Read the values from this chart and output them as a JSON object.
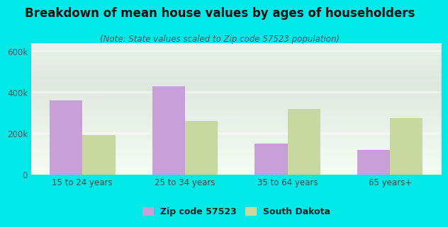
{
  "title": "Breakdown of mean house values by ages of householders",
  "subtitle": "(Note: State values scaled to Zip code 57523 population)",
  "categories": [
    "15 to 24 years",
    "25 to 34 years",
    "35 to 64 years",
    "65 years+"
  ],
  "zip_values": [
    360000,
    430000,
    150000,
    120000
  ],
  "sd_values": [
    190000,
    260000,
    320000,
    275000
  ],
  "zip_color": "#c8a0d8",
  "sd_color": "#c8d8a0",
  "background_outer": "#00e8e8",
  "ylim": [
    0,
    640000
  ],
  "yticks": [
    0,
    200000,
    400000,
    600000
  ],
  "ytick_labels": [
    "0",
    "200k",
    "400k",
    "600k"
  ],
  "legend_zip_label": "Zip code 57523",
  "legend_sd_label": "South Dakota",
  "bar_width": 0.32,
  "title_fontsize": 12,
  "subtitle_fontsize": 8.5,
  "tick_fontsize": 8.5,
  "legend_fontsize": 9
}
